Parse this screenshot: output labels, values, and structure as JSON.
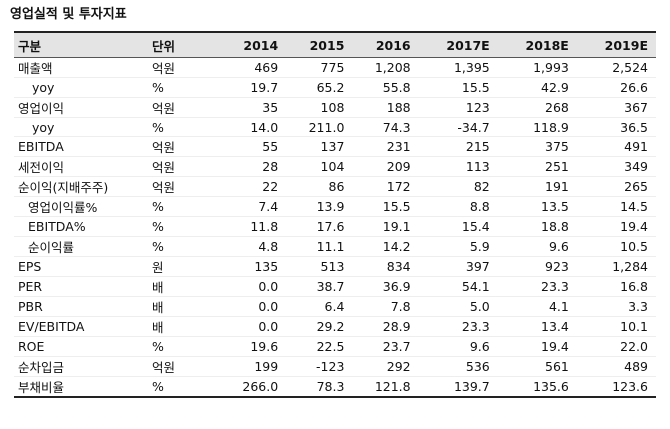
{
  "title": "영업실적 및 투자지표",
  "table": {
    "header": [
      "구분",
      "단위",
      "2014",
      "2015",
      "2016",
      "2017E",
      "2018E",
      "2019E"
    ],
    "rows": [
      [
        "매출액",
        "억원",
        "469",
        "775",
        "1,208",
        "1,395",
        "1,993",
        "2,524"
      ],
      [
        "yoy",
        "%",
        "19.7",
        "65.2",
        "55.8",
        "15.5",
        "42.9",
        "26.6"
      ],
      [
        "영업이익",
        "억원",
        "35",
        "108",
        "188",
        "123",
        "268",
        "367"
      ],
      [
        "yoy",
        "%",
        "14.0",
        "211.0",
        "74.3",
        "-34.7",
        "118.9",
        "36.5"
      ],
      [
        "EBITDA",
        "억원",
        "55",
        "137",
        "231",
        "215",
        "375",
        "491"
      ],
      [
        "세전이익",
        "억원",
        "28",
        "104",
        "209",
        "113",
        "251",
        "349"
      ],
      [
        "순이익(지배주주)",
        "억원",
        "22",
        "86",
        "172",
        "82",
        "191",
        "265"
      ],
      [
        "영업이익률%",
        "%",
        "7.4",
        "13.9",
        "15.5",
        "8.8",
        "13.5",
        "14.5"
      ],
      [
        "EBITDA%",
        "%",
        "11.8",
        "17.6",
        "19.1",
        "15.4",
        "18.8",
        "19.4"
      ],
      [
        "순이익률",
        "%",
        "4.8",
        "11.1",
        "14.2",
        "5.9",
        "9.6",
        "10.5"
      ],
      [
        "EPS",
        "원",
        "135",
        "513",
        "834",
        "397",
        "923",
        "1,284"
      ],
      [
        "PER",
        "배",
        "0.0",
        "38.7",
        "36.9",
        "54.1",
        "23.3",
        "16.8"
      ],
      [
        "PBR",
        "배",
        "0.0",
        "6.4",
        "7.8",
        "5.0",
        "4.1",
        "3.3"
      ],
      [
        "EV/EBITDA",
        "배",
        "0.0",
        "29.2",
        "28.9",
        "23.3",
        "13.4",
        "10.1"
      ],
      [
        "ROE",
        "%",
        "19.6",
        "22.5",
        "23.7",
        "9.6",
        "19.4",
        "22.0"
      ],
      [
        "순차입금",
        "억원",
        "199",
        "-123",
        "292",
        "536",
        "561",
        "489"
      ],
      [
        "부채비율",
        "%",
        "266.0",
        "78.3",
        "121.8",
        "139.7",
        "135.6",
        "123.6"
      ]
    ]
  }
}
